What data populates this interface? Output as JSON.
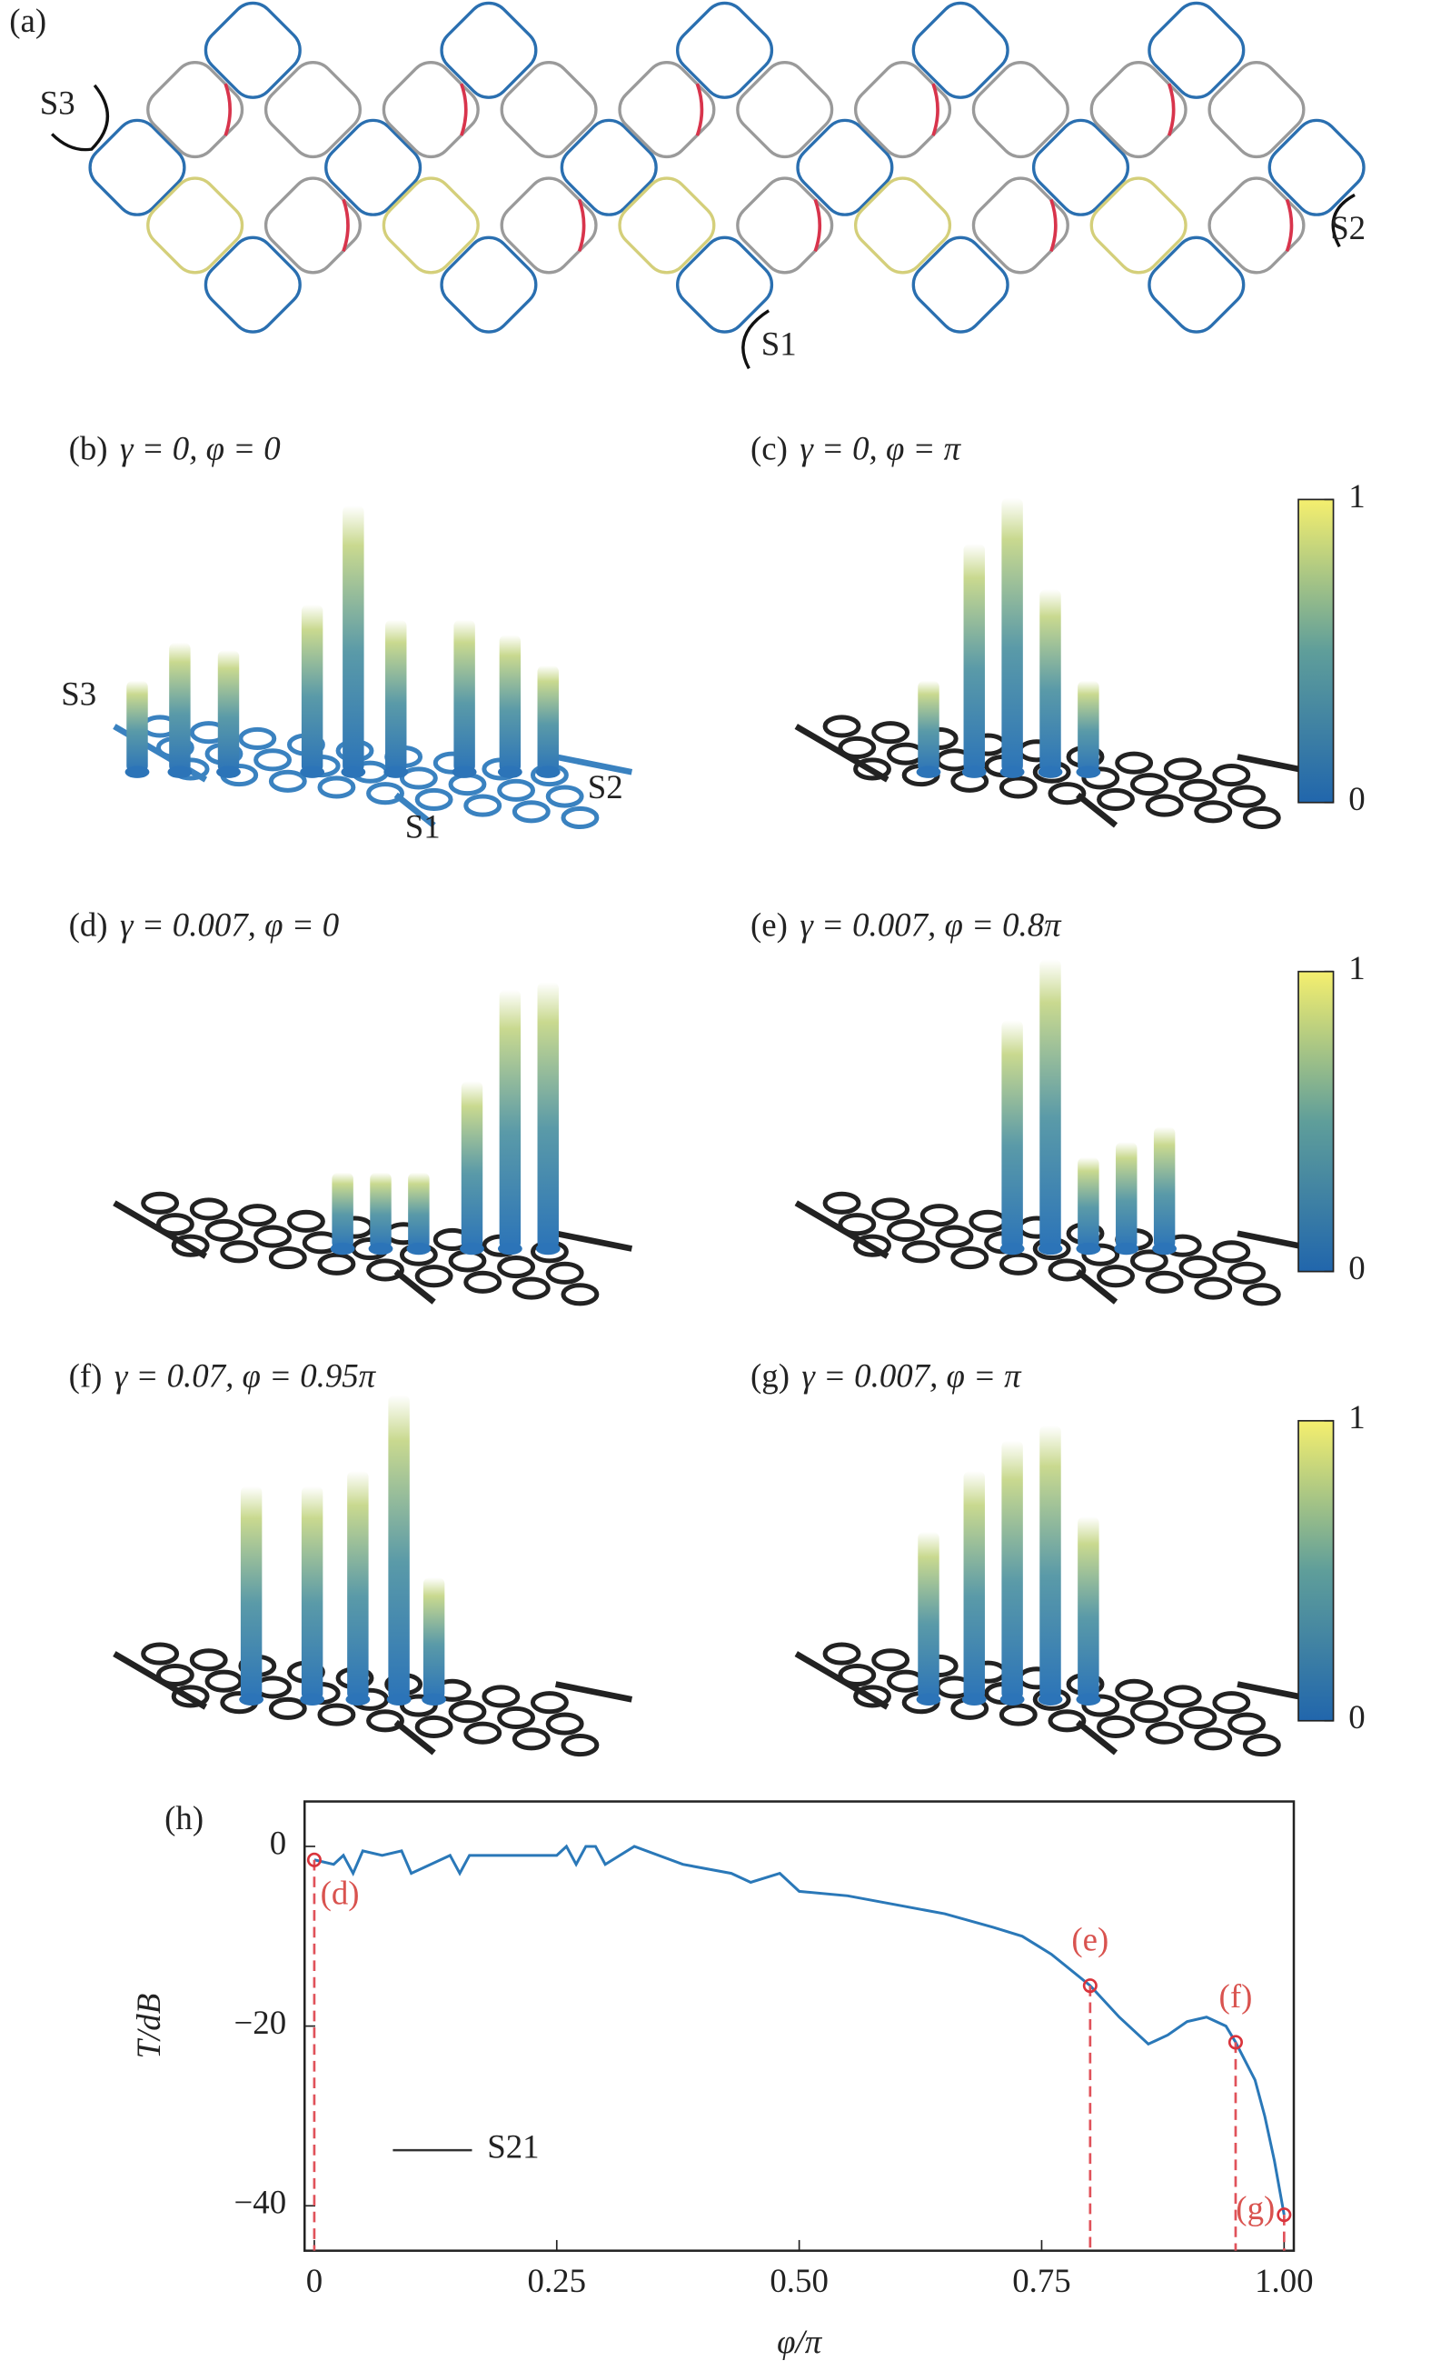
{
  "panel_a": {
    "label": "(a)",
    "ports": [
      "S3",
      "S2",
      "S1"
    ]
  },
  "panels": [
    {
      "label": "(b)",
      "caption": "γ = 0, φ = 0",
      "ports": [
        "S3",
        "S2",
        "S1"
      ]
    },
    {
      "label": "(c)",
      "caption": "γ = 0, φ = π"
    },
    {
      "label": "(d)",
      "caption": "γ = 0.007, φ = 0"
    },
    {
      "label": "(e)",
      "caption": "γ = 0.007, φ = 0.8π"
    },
    {
      "label": "(f)",
      "caption": "γ = 0.07, φ = 0.95π"
    },
    {
      "label": "(g)",
      "caption": "γ = 0.007, φ = π"
    }
  ],
  "colorbar": {
    "ticks": [
      0,
      1
    ]
  },
  "chart_data": {
    "type": "line",
    "label": "(h)",
    "xlabel": "φ/π",
    "ylabel": "T/dB",
    "xlim": [
      -0.01,
      1.01
    ],
    "ylim": [
      -45,
      5
    ],
    "xticks": [
      0,
      0.25,
      {
        "value": 0.5,
        "label": "0.50"
      },
      0.75,
      {
        "value": 1,
        "label": "1.00"
      }
    ],
    "yticks": [
      0,
      {
        "value": -20,
        "label": "−20"
      },
      {
        "value": -40,
        "label": "−40"
      }
    ],
    "legend": "lower left",
    "series": [
      {
        "name": "S21",
        "color": "#2a78b8",
        "x": [
          0,
          0.02,
          0.03,
          0.04,
          0.05,
          0.07,
          0.09,
          0.1,
          0.12,
          0.14,
          0.15,
          0.16,
          0.2,
          0.25,
          0.26,
          0.27,
          0.28,
          0.29,
          0.3,
          0.33,
          0.38,
          0.43,
          0.45,
          0.48,
          0.5,
          0.55,
          0.6,
          0.65,
          0.7,
          0.73,
          0.76,
          0.8,
          0.83,
          0.86,
          0.88,
          0.9,
          0.92,
          0.94,
          0.95,
          0.97,
          0.98,
          0.99,
          1.0
        ],
        "values": [
          -1.5,
          -2,
          -1,
          -3,
          -0.5,
          -1,
          -0.5,
          -3,
          -2,
          -1,
          -3,
          -1,
          -1,
          -1,
          0,
          -2,
          0,
          0,
          -2,
          0,
          -2,
          -3,
          -4,
          -3,
          -5,
          -5.5,
          -6.5,
          -7.5,
          -9,
          -10,
          -12,
          -15.5,
          -19,
          -22,
          -21,
          -19.5,
          -19,
          -20,
          -21.8,
          -26,
          -30,
          -35,
          -41
        ]
      }
    ],
    "markers": [
      {
        "label": "(d)",
        "x": 0,
        "y": -1.5
      },
      {
        "label": "(e)",
        "x": 0.8,
        "y": -15.5
      },
      {
        "label": "(f)",
        "x": 0.95,
        "y": -21.8
      },
      {
        "label": "(g)",
        "x": 1,
        "y": -41
      }
    ]
  }
}
